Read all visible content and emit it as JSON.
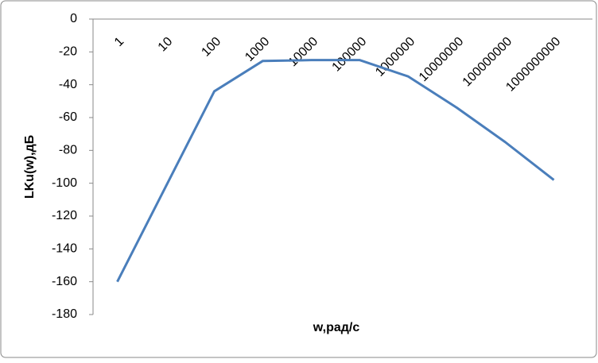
{
  "chart_data": {
    "type": "line",
    "x_label": "w,рад/с",
    "y_label": "LKu(w),дБ",
    "categories": [
      "1",
      "10",
      "100",
      "1000",
      "10000",
      "100000",
      "1000000",
      "10000000",
      "100000000",
      "1000000000"
    ],
    "series": [
      {
        "color": "#4a7ebb",
        "values": [
          -160,
          -102,
          -44,
          -25.5,
          -25,
          -25,
          -35,
          -54,
          -75,
          -98
        ]
      }
    ],
    "ylim": [
      -180,
      0
    ],
    "yticks": [
      -180,
      -160,
      -140,
      -120,
      -100,
      -80,
      -60,
      -40,
      -20,
      0
    ]
  }
}
